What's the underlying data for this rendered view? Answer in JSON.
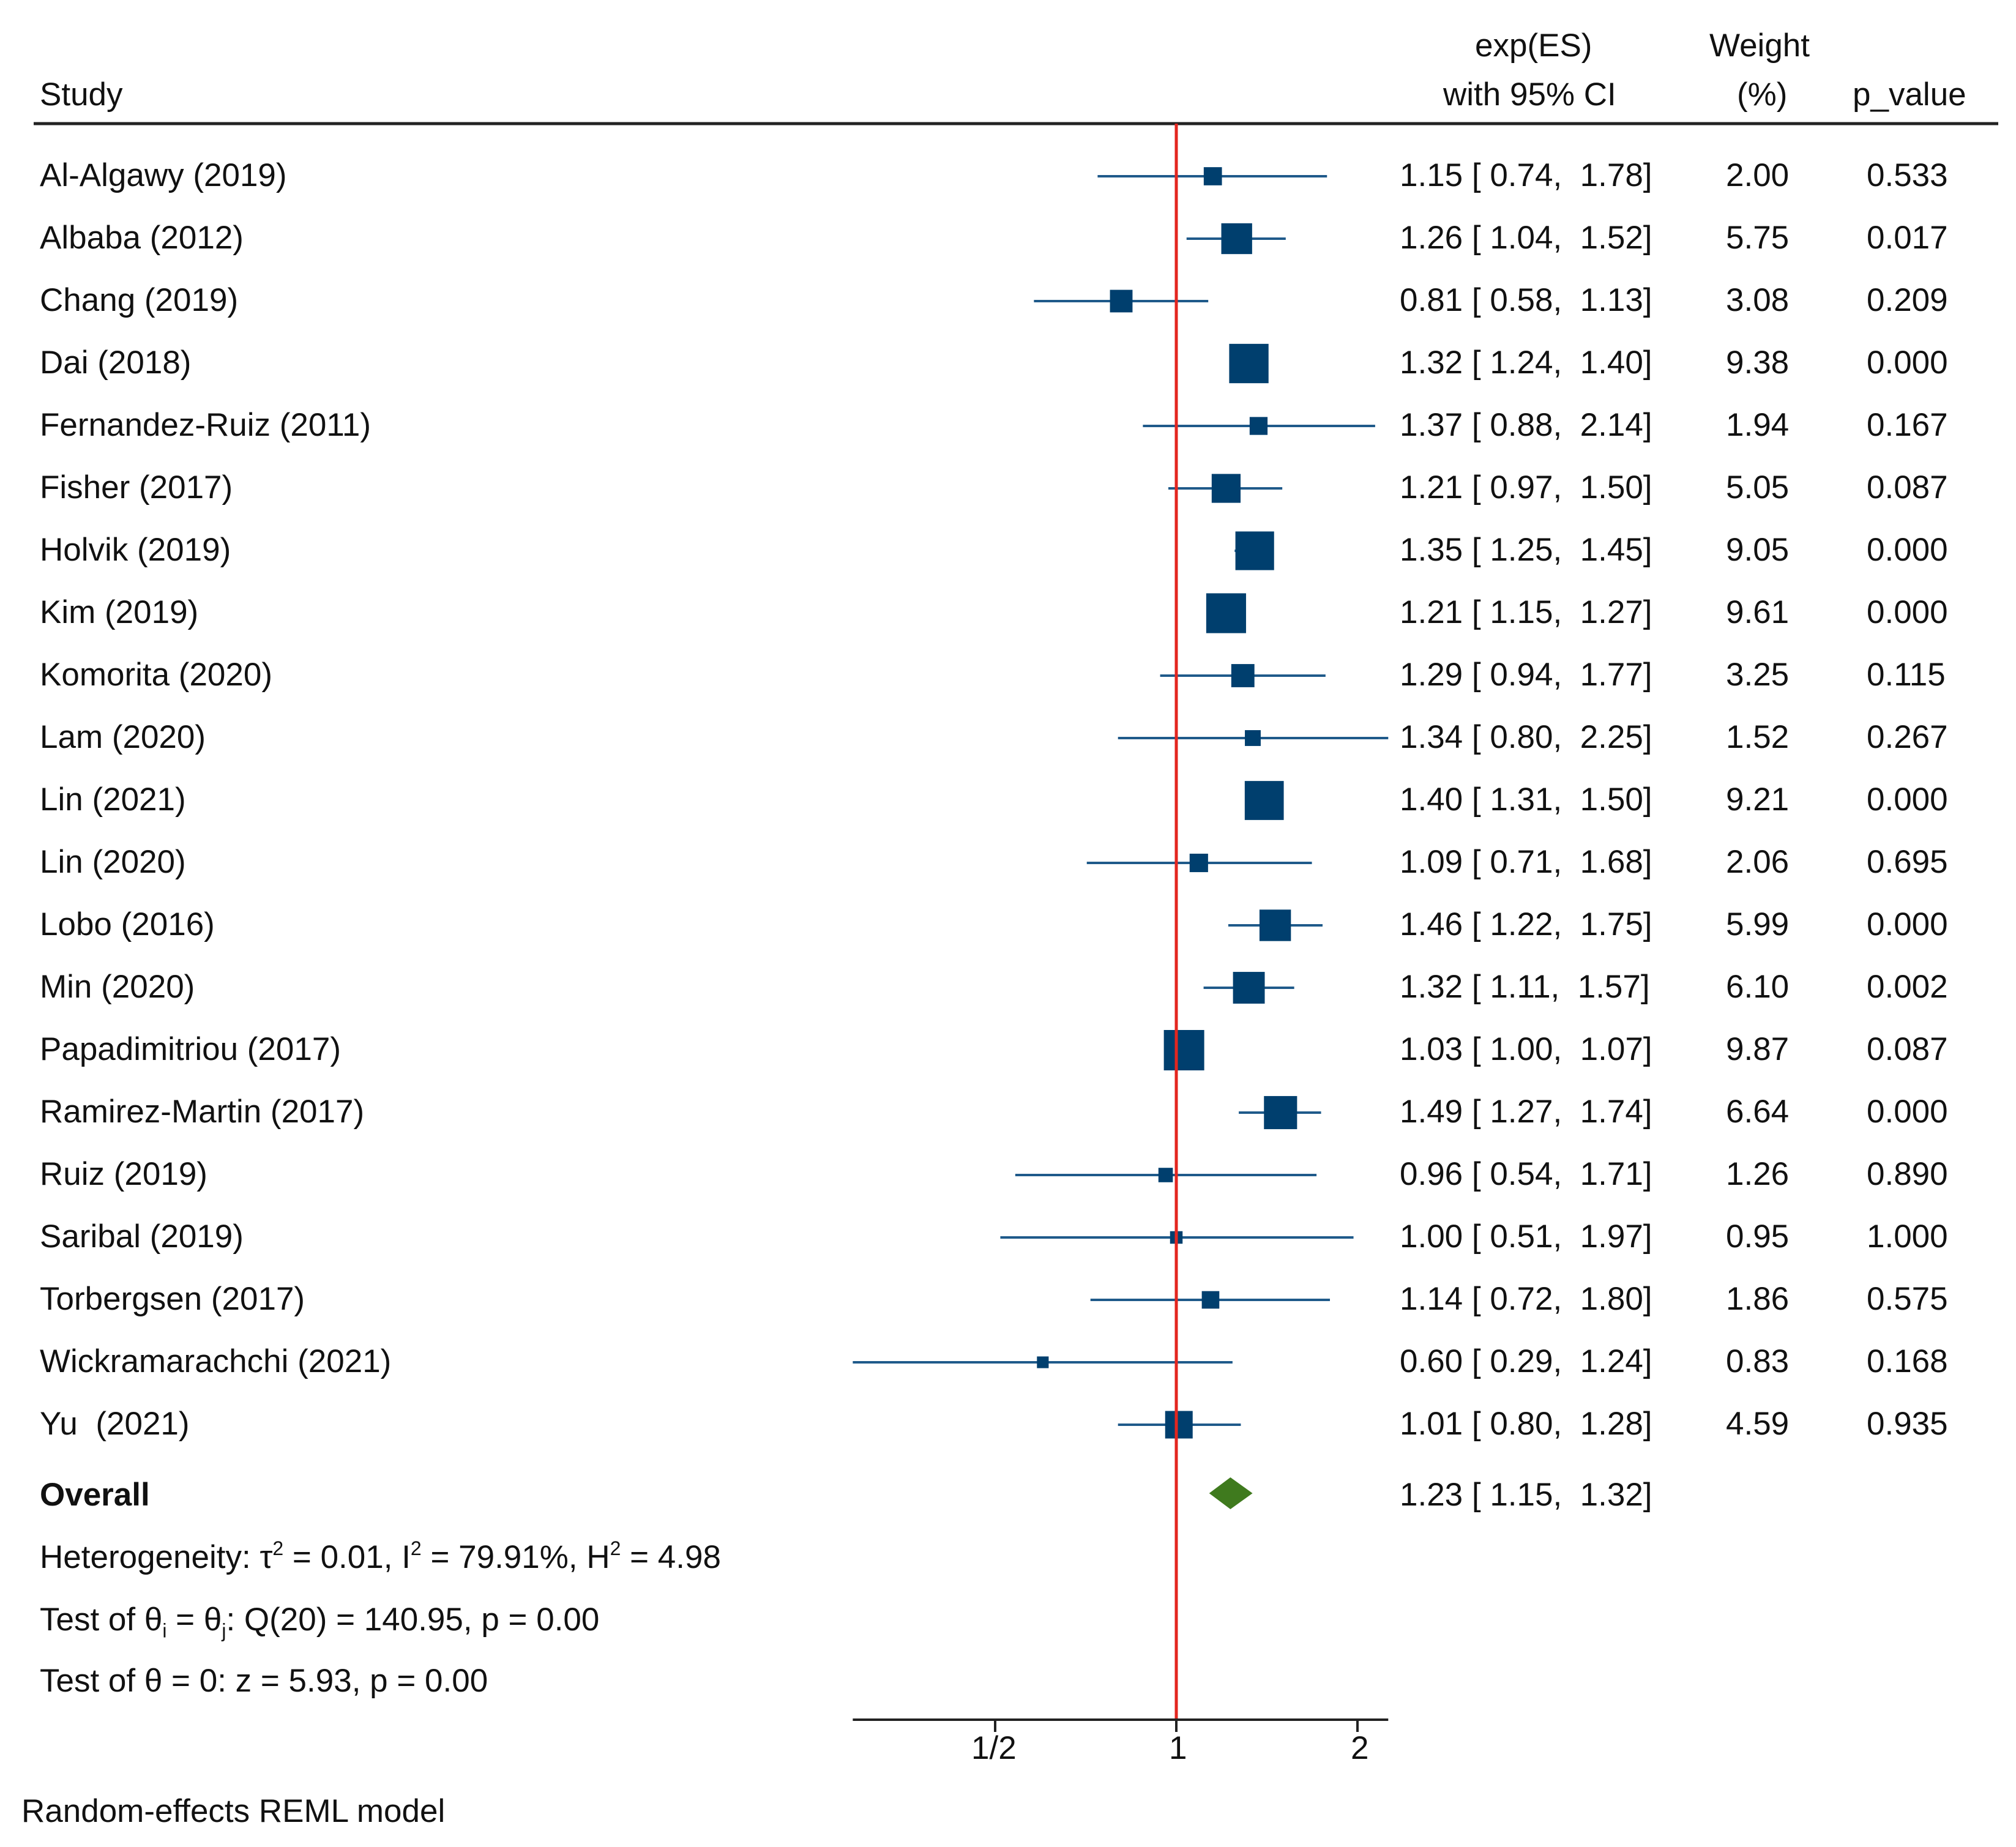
{
  "chart_data": {
    "type": "forest",
    "header": {
      "study": "Study",
      "es_line1": "exp(ES)",
      "es_line2": "with 95% CI",
      "weight_line1": "Weight",
      "weight_line2": "(%)",
      "p": "p_value"
    },
    "studies": [
      {
        "name": "Al-Algawy (2019)",
        "es": 1.15,
        "lo": 0.74,
        "hi": 1.78,
        "ci_text": "1.15 [ 0.74,  1.78]",
        "weight": "2.00",
        "p": "0.533"
      },
      {
        "name": "Albaba (2012)",
        "es": 1.26,
        "lo": 1.04,
        "hi": 1.52,
        "ci_text": "1.26 [ 1.04,  1.52]",
        "weight": "5.75",
        "p": "0.017"
      },
      {
        "name": "Chang (2019)",
        "es": 0.81,
        "lo": 0.58,
        "hi": 1.13,
        "ci_text": "0.81 [ 0.58,  1.13]",
        "weight": "3.08",
        "p": "0.209"
      },
      {
        "name": "Dai (2018)",
        "es": 1.32,
        "lo": 1.24,
        "hi": 1.4,
        "ci_text": "1.32 [ 1.24,  1.40]",
        "weight": "9.38",
        "p": "0.000"
      },
      {
        "name": "Fernandez-Ruiz (2011)",
        "es": 1.37,
        "lo": 0.88,
        "hi": 2.14,
        "ci_text": "1.37 [ 0.88,  2.14]",
        "weight": "1.94",
        "p": "0.167"
      },
      {
        "name": "Fisher (2017)",
        "es": 1.21,
        "lo": 0.97,
        "hi": 1.5,
        "ci_text": "1.21 [ 0.97,  1.50]",
        "weight": "5.05",
        "p": "0.087"
      },
      {
        "name": "Holvik (2019)",
        "es": 1.35,
        "lo": 1.25,
        "hi": 1.45,
        "ci_text": "1.35 [ 1.25,  1.45]",
        "weight": "9.05",
        "p": "0.000"
      },
      {
        "name": "Kim (2019)",
        "es": 1.21,
        "lo": 1.15,
        "hi": 1.27,
        "ci_text": "1.21 [ 1.15,  1.27]",
        "weight": "9.61",
        "p": "0.000"
      },
      {
        "name": "Komorita (2020)",
        "es": 1.29,
        "lo": 0.94,
        "hi": 1.77,
        "ci_text": "1.29 [ 0.94,  1.77]",
        "weight": "3.25",
        "p": "0.115"
      },
      {
        "name": "Lam (2020)",
        "es": 1.34,
        "lo": 0.8,
        "hi": 2.25,
        "ci_text": "1.34 [ 0.80,  2.25]",
        "weight": "1.52",
        "p": "0.267"
      },
      {
        "name": "Lin (2021)",
        "es": 1.4,
        "lo": 1.31,
        "hi": 1.5,
        "ci_text": "1.40 [ 1.31,  1.50]",
        "weight": "9.21",
        "p": "0.000"
      },
      {
        "name": "Lin (2020)",
        "es": 1.09,
        "lo": 0.71,
        "hi": 1.68,
        "ci_text": "1.09 [ 0.71,  1.68]",
        "weight": "2.06",
        "p": "0.695"
      },
      {
        "name": "Lobo (2016)",
        "es": 1.46,
        "lo": 1.22,
        "hi": 1.75,
        "ci_text": "1.46 [ 1.22,  1.75]",
        "weight": "5.99",
        "p": "0.000"
      },
      {
        "name": "Min (2020)",
        "es": 1.32,
        "lo": 1.11,
        "hi": 1.57,
        "ci_text": "1.32 [ 1.11,  1.57]",
        "weight": "6.10",
        "p": "0.002"
      },
      {
        "name": "Papadimitriou (2017)",
        "es": 1.03,
        "lo": 1.0,
        "hi": 1.07,
        "ci_text": "1.03 [ 1.00,  1.07]",
        "weight": "9.87",
        "p": "0.087"
      },
      {
        "name": "Ramirez-Martin (2017)",
        "es": 1.49,
        "lo": 1.27,
        "hi": 1.74,
        "ci_text": "1.49 [ 1.27,  1.74]",
        "weight": "6.64",
        "p": "0.000"
      },
      {
        "name": "Ruiz (2019)",
        "es": 0.96,
        "lo": 0.54,
        "hi": 1.71,
        "ci_text": "0.96 [ 0.54,  1.71]",
        "weight": "1.26",
        "p": "0.890"
      },
      {
        "name": "Saribal (2019)",
        "es": 1.0,
        "lo": 0.51,
        "hi": 1.97,
        "ci_text": "1.00 [ 0.51,  1.97]",
        "weight": "0.95",
        "p": "1.000"
      },
      {
        "name": "Torbergsen (2017)",
        "es": 1.14,
        "lo": 0.72,
        "hi": 1.8,
        "ci_text": "1.14 [ 0.72,  1.80]",
        "weight": "1.86",
        "p": "0.575"
      },
      {
        "name": "Wickramarachchi (2021)",
        "es": 0.6,
        "lo": 0.29,
        "hi": 1.24,
        "ci_text": "0.60 [ 0.29,  1.24]",
        "weight": "0.83",
        "p": "0.168"
      },
      {
        "name": "Yu  (2021)",
        "es": 1.01,
        "lo": 0.8,
        "hi": 1.28,
        "ci_text": "1.01 [ 0.80,  1.28]",
        "weight": "4.59",
        "p": "0.935"
      }
    ],
    "overall": {
      "label": "Overall",
      "es": 1.23,
      "lo": 1.15,
      "hi": 1.32,
      "ci_text": "1.23 [ 1.15,  1.32]"
    },
    "stats": {
      "heterogeneity_prefix": "Heterogeneity: ",
      "tau_symbol": "τ",
      "tau_value": " = 0.01, ",
      "i_symbol": "I",
      "i_value": " = 79.91%, ",
      "h_symbol": "H",
      "h_value": " = 4.98",
      "sq": "2",
      "test1_prefix": "Test of ",
      "theta": "θ",
      "sub_i": "i",
      "eq": " = ",
      "sub_j": "j",
      "test1_rest": ": Q(20) = 140.95, p = 0.00",
      "test2": "Test of θ = 0: z = 5.93, p = 0.00"
    },
    "x_axis": {
      "scale": "log",
      "ticks": [
        0.5,
        1,
        2
      ],
      "tick_labels": [
        "1/2",
        "1",
        "2"
      ],
      "ref_line": 1,
      "range": [
        0.29,
        2.25
      ]
    },
    "footnote": "Random-effects REML model",
    "colors": {
      "marker": "#003f6e",
      "ci_line": "#1f5a8a",
      "diamond": "#3f7a1e",
      "ref_line": "#e3261f",
      "axis": "#222222"
    }
  }
}
